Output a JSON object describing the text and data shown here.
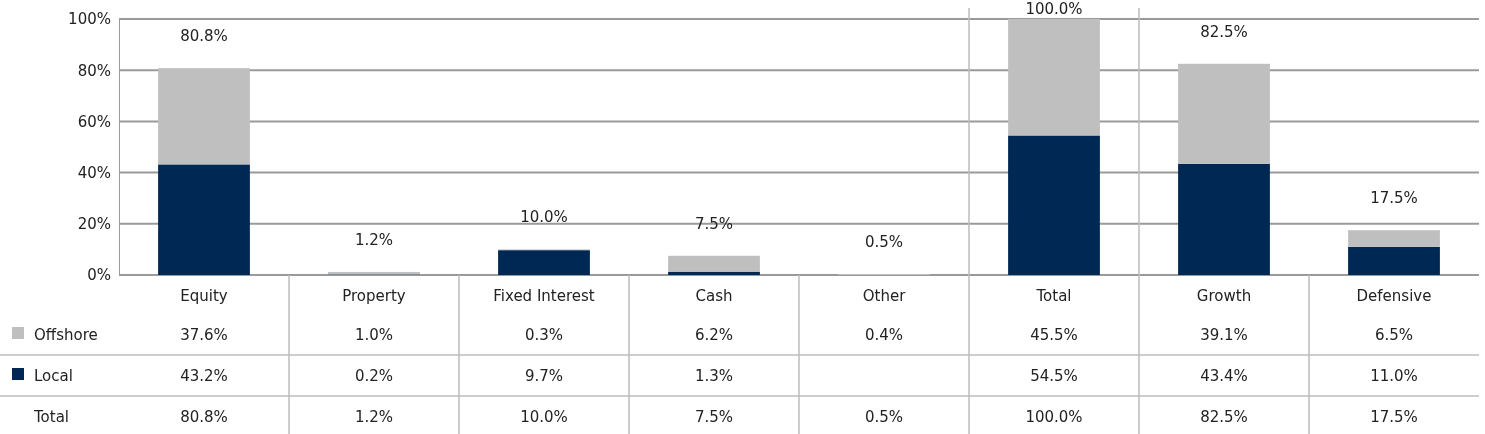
{
  "chart_data": {
    "type": "bar",
    "stacked": true,
    "categories": [
      "Equity",
      "Property",
      "Fixed Interest",
      "Cash",
      "Other",
      "Total",
      "Growth",
      "Defensive"
    ],
    "series": [
      {
        "name": "Local",
        "color": "#002855",
        "values": [
          43.2,
          0.2,
          9.7,
          1.3,
          null,
          54.5,
          43.4,
          11.0
        ],
        "value_labels": [
          "43.2%",
          "0.2%",
          "9.7%",
          "1.3%",
          null,
          "54.5%",
          "43.4%",
          "11.0%"
        ]
      },
      {
        "name": "Offshore",
        "color": "#bfbfbf",
        "values": [
          37.6,
          1.0,
          0.3,
          6.2,
          0.4,
          45.5,
          39.1,
          6.5
        ],
        "value_labels": [
          "37.6%",
          "1.0%",
          "0.3%",
          "6.2%",
          "0.4%",
          "45.5%",
          "39.1%",
          "6.5%"
        ]
      }
    ],
    "totals": [
      "80.8%",
      "1.2%",
      "10.0%",
      "7.5%",
      "0.5%",
      "100.0%",
      "82.5%",
      "17.5%"
    ],
    "annotations": [
      "Total"
    ],
    "ylim": [
      0,
      100
    ],
    "yticks": [
      {
        "value": 0,
        "label": "0%"
      },
      {
        "value": 20,
        "label": "20%"
      },
      {
        "value": 40,
        "label": "40%"
      },
      {
        "value": 60,
        "label": "60%"
      },
      {
        "value": 80,
        "label": "80%"
      },
      {
        "value": 100,
        "label": "100%"
      }
    ],
    "grid": "y",
    "legend": "bottom left"
  }
}
